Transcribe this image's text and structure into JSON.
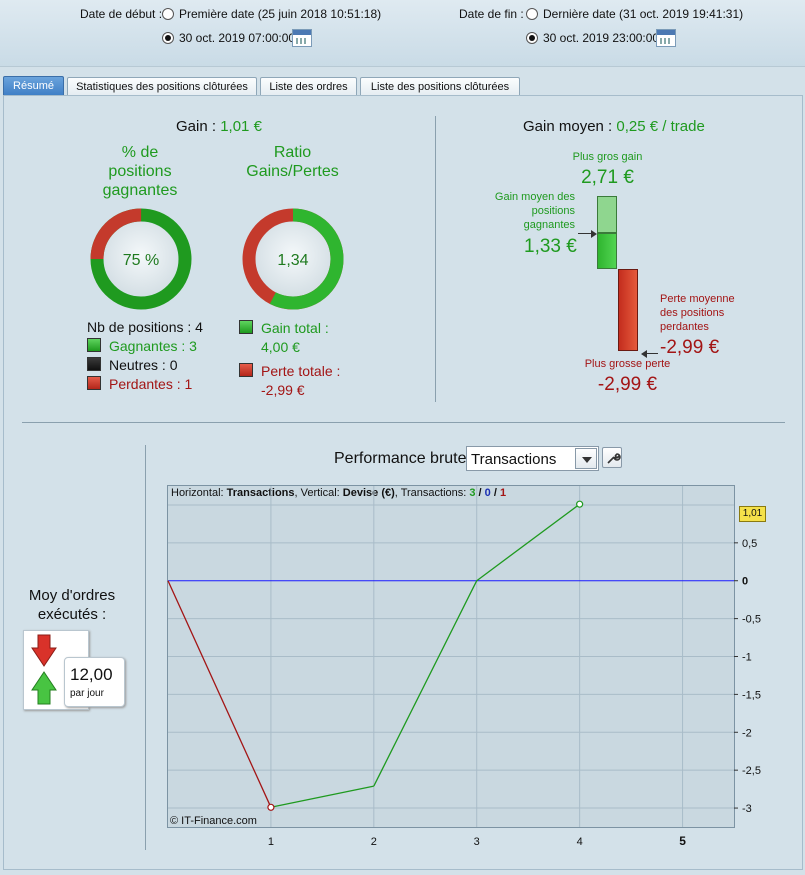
{
  "date_filter": {
    "start_label": "Date de début :",
    "start_option_first": "Première date (25 juin 2018 10:51:18)",
    "start_option_custom": "30 oct. 2019 07:00:00",
    "end_label": "Date de fin :",
    "end_option_last": "Dernière date (31 oct. 2019 19:41:31)",
    "end_option_custom": "30 oct. 2019 23:00:00"
  },
  "tabs": [
    {
      "label": "Résumé",
      "active": true
    },
    {
      "label": "Statistiques des positions clôturées",
      "active": false
    },
    {
      "label": "Liste des ordres",
      "active": false
    },
    {
      "label": "Liste des positions clôturées",
      "active": false
    }
  ],
  "summary": {
    "gain_label": "Gain :",
    "gain_value": "1,01 €",
    "pct_title_1": "% de",
    "pct_title_2": "positions",
    "pct_title_3": "gagnantes",
    "pct_value": "75 %",
    "pct_fraction": 0.75,
    "ratio_title_1": "Ratio",
    "ratio_title_2": "Gains/Pertes",
    "ratio_value": "1,34",
    "ratio_gain_fraction": 0.575,
    "nb_positions": "Nb de positions : 4",
    "winners": "Gagnantes : 3",
    "neutral": "Neutres : 0",
    "losers": "Perdantes : 1",
    "total_gain_label": "Gain total :",
    "total_gain_value": "4,00 €",
    "total_loss_label": "Perte totale :",
    "total_loss_value": "-2,99 €"
  },
  "avg_gain": {
    "label": "Gain moyen :",
    "value": "0,25 € / trade",
    "max_gain_label": "Plus gros gain",
    "max_gain_value": "2,71 €",
    "avg_winner_label_1": "Gain moyen des",
    "avg_winner_label_2": "positions",
    "avg_winner_label_3": "gagnantes",
    "avg_winner_value": "1,33 €",
    "avg_loser_label_1": "Perte moyenne",
    "avg_loser_label_2": "des positions",
    "avg_loser_label_3": "perdantes",
    "avg_loser_value": "-2,99 €",
    "max_loss_label": "Plus grosse perte",
    "max_loss_value": "-2,99 €"
  },
  "orders": {
    "title_1": "Moy d'ordres",
    "title_2": "exécutés :",
    "value": "12,00",
    "unit": "par jour"
  },
  "performance": {
    "title": "Performance brute",
    "select_value": "Transactions",
    "info_prefix": "Horizontal: ",
    "info_h": "Transactions",
    "info_mid": ", Vertical: ",
    "info_v": "Devise (€)",
    "info_tx": ", Transactions: ",
    "info_win": "3",
    "info_sep1": " / ",
    "info_neutral": "0",
    "info_sep2": " / ",
    "info_loss": "1",
    "copyright": "© IT-Finance.com",
    "last_value_badge": "1,01"
  },
  "chart_data": {
    "type": "line",
    "x": [
      0,
      1,
      2,
      3,
      4
    ],
    "y": [
      0,
      -2.99,
      -2.71,
      0,
      1.01
    ],
    "segment_colors": [
      "#a31515",
      "#1f9a1f",
      "#1f9a1f",
      "#1f9a1f"
    ],
    "xlabel": "Transactions",
    "ylabel": "Devise (€)",
    "xlim": [
      0,
      5.5
    ],
    "ylim": [
      -3.25,
      1.25
    ],
    "xticks": [
      "1",
      "2",
      "3",
      "4",
      "5"
    ],
    "yticks": [
      "1",
      "0,5",
      "0",
      "-0,5",
      "-1",
      "-1,5",
      "-2",
      "-2,5",
      "-3"
    ],
    "ytick_values": [
      1,
      0.5,
      0,
      -0.5,
      -1,
      -1.5,
      -2,
      -2.5,
      -3
    ],
    "grid": true,
    "zero_line_color": "#1a1aff"
  }
}
